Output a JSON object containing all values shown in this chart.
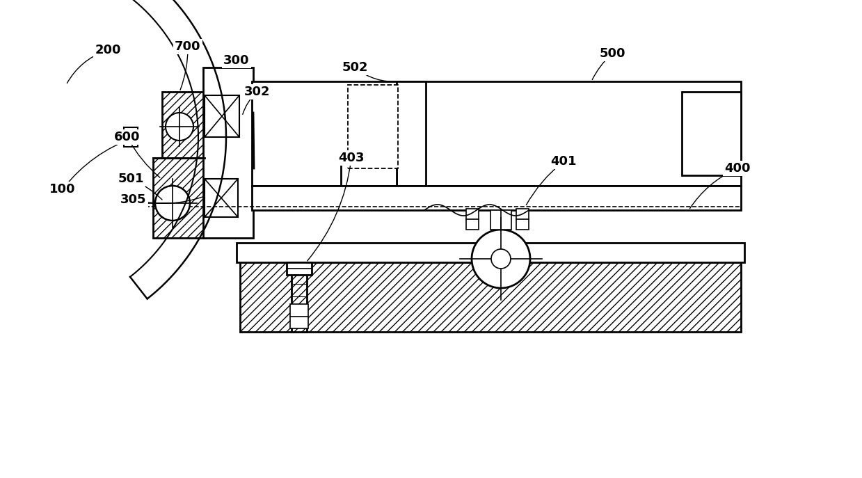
{
  "bg_color": "#ffffff",
  "line_color": "#000000",
  "lw_thick": 2.0,
  "lw_thin": 1.2,
  "lw_dash": 1.2,
  "font_size": 13,
  "font_weight": "bold"
}
